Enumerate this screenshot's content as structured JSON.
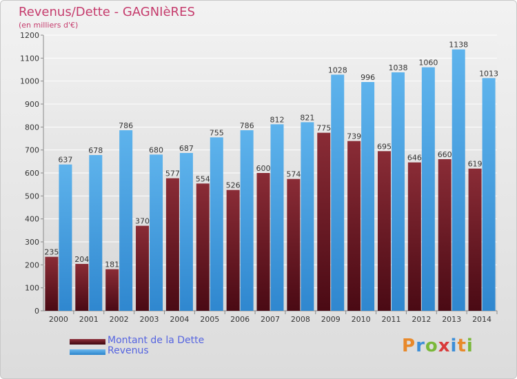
{
  "title": "Revenus/Dette - GAGNIèRES",
  "subtitle": "(en milliers d'€)",
  "chart_data": {
    "type": "bar",
    "categories": [
      "2000",
      "2001",
      "2002",
      "2003",
      "2004",
      "2005",
      "2006",
      "2007",
      "2008",
      "2009",
      "2010",
      "2011",
      "2012",
      "2013",
      "2014"
    ],
    "series": [
      {
        "name": "Montant de la Dette",
        "color": "#6e1622",
        "values": [
          235,
          204,
          181,
          370,
          577,
          554,
          526,
          600,
          574,
          775,
          739,
          695,
          646,
          660,
          619
        ]
      },
      {
        "name": "Revenus",
        "color": "#3d9be0",
        "values": [
          637,
          678,
          786,
          680,
          687,
          755,
          786,
          812,
          821,
          1028,
          996,
          1038,
          1060,
          1138,
          1013
        ]
      }
    ],
    "yticks": [
      0,
      100,
      200,
      300,
      400,
      500,
      600,
      700,
      800,
      900,
      1000,
      1100,
      1200
    ],
    "ylim": [
      0,
      1200
    ],
    "grid": true,
    "legend": "bottom-left"
  },
  "logo_text": "Proxiti"
}
